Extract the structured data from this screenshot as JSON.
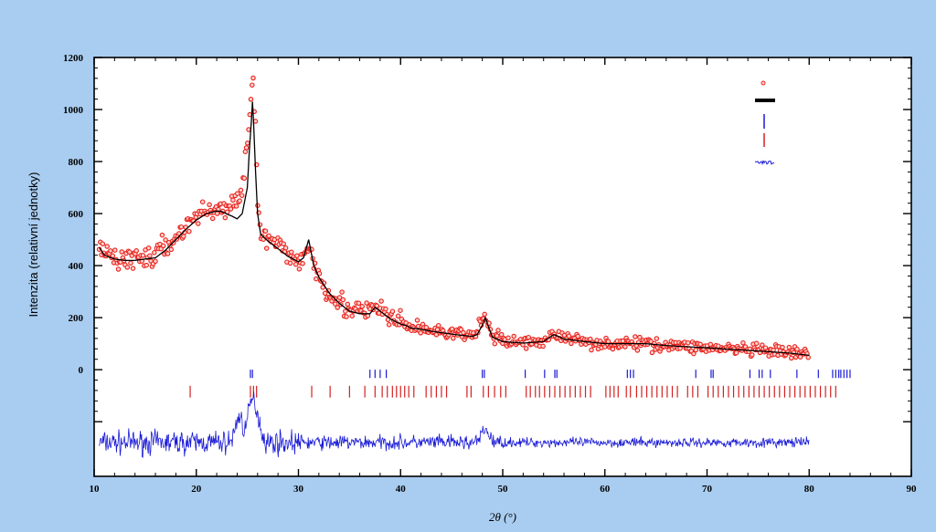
{
  "chart_data": {
    "type": "scatter",
    "title": "",
    "xlabel": "2θ (°)",
    "ylabel": "Intenzita (relativní jednotky)",
    "xlim": [
      10,
      90
    ],
    "ylim": [
      -410,
      1200
    ],
    "x_ticks": [
      "10",
      "20",
      "30",
      "40",
      "50",
      "60",
      "70",
      "80",
      "90"
    ],
    "y_ticks": [
      "0",
      "200",
      "400",
      "600",
      "800",
      "1000",
      "1200"
    ],
    "y_tick_values": [
      0,
      200,
      400,
      600,
      800,
      1000,
      1200
    ],
    "unlabeled_y_tick_values": [
      -200
    ],
    "grid": false,
    "legend_position": "top-right",
    "colors": {
      "background": "#a9cdf0",
      "observed": "#e8221c",
      "calculated": "#000000",
      "phase1": "#1a1ad6",
      "phase2": "#d42020",
      "difference": "#1a1ad6"
    },
    "series": [
      {
        "kind": "observed",
        "marker": "circle",
        "x": [
          10.5,
          11,
          12,
          13,
          14,
          15,
          16,
          17,
          18,
          19,
          20,
          21,
          22,
          22.5,
          23,
          23.5,
          24,
          24.5,
          25,
          25.2,
          25.4,
          25.5,
          25.6,
          25.8,
          26,
          26.3,
          27,
          28,
          29,
          30,
          30.5,
          31,
          31.5,
          32,
          33,
          34,
          35,
          36,
          37,
          37.5,
          38,
          39,
          40,
          40.5,
          41,
          42,
          43,
          44,
          45,
          46,
          47,
          47.5,
          48,
          48.3,
          48.6,
          49,
          50,
          52,
          54,
          55,
          56,
          58,
          60,
          62,
          64,
          66,
          68,
          70,
          72,
          74,
          76,
          78,
          80
        ],
        "y": [
          480,
          450,
          430,
          425,
          430,
          430,
          440,
          470,
          510,
          550,
          590,
          610,
          620,
          615,
          615,
          625,
          650,
          720,
          880,
          980,
          1080,
          1150,
          1080,
          900,
          640,
          520,
          500,
          470,
          440,
          420,
          440,
          470,
          420,
          360,
          300,
          260,
          230,
          220,
          220,
          240,
          230,
          200,
          180,
          170,
          165,
          160,
          150,
          145,
          140,
          135,
          130,
          140,
          200,
          210,
          170,
          130,
          110,
          105,
          110,
          140,
          120,
          110,
          100,
          100,
          100,
          95,
          90,
          85,
          80,
          75,
          70,
          65,
          55
        ]
      },
      {
        "kind": "calculated",
        "marker": "line",
        "x": [
          10.5,
          11,
          12,
          13,
          14,
          15,
          16,
          17,
          18,
          19,
          20,
          21,
          22,
          22.5,
          23,
          23.5,
          24,
          24.5,
          25,
          25.2,
          25.4,
          25.5,
          25.6,
          25.8,
          26,
          26.3,
          27,
          28,
          29,
          30,
          30.5,
          31,
          31.5,
          32,
          33,
          34,
          35,
          36,
          37,
          37.5,
          38,
          39,
          40,
          40.5,
          41,
          42,
          43,
          44,
          45,
          46,
          47,
          47.5,
          48,
          48.3,
          48.6,
          49,
          50,
          52,
          54,
          55,
          56,
          58,
          60,
          62,
          64,
          66,
          68,
          70,
          72,
          74,
          76,
          78,
          80
        ],
        "y": [
          470,
          440,
          425,
          420,
          420,
          425,
          430,
          460,
          500,
          540,
          575,
          600,
          610,
          608,
          598,
          590,
          580,
          600,
          700,
          850,
          960,
          1030,
          960,
          760,
          600,
          520,
          495,
          465,
          435,
          415,
          430,
          500,
          400,
          355,
          295,
          255,
          225,
          215,
          215,
          240,
          225,
          195,
          175,
          170,
          160,
          155,
          148,
          142,
          137,
          132,
          128,
          135,
          170,
          200,
          165,
          125,
          108,
          102,
          108,
          135,
          118,
          108,
          100,
          100,
          100,
          93,
          88,
          84,
          79,
          74,
          69,
          64,
          55
        ]
      }
    ],
    "phase_markers": [
      {
        "row": 1,
        "positions": [
          25.3,
          25.5,
          37.0,
          37.5,
          38.0,
          38.6,
          48.0,
          48.2,
          52.2,
          54.1,
          55.1,
          55.3,
          62.2,
          62.5,
          62.8,
          68.9,
          70.4,
          70.6,
          74.2,
          75.1,
          75.4,
          76.2,
          78.8,
          80.9,
          82.3,
          82.6,
          82.9,
          83.1,
          83.4,
          83.7,
          84.0
        ]
      },
      {
        "row": 2,
        "positions": [
          19.4,
          25.3,
          25.6,
          25.9,
          31.3,
          33.1,
          35.0,
          36.5,
          37.5,
          38.2,
          38.7,
          39.2,
          39.6,
          40.0,
          40.4,
          40.8,
          41.3,
          42.5,
          43.0,
          43.5,
          44.0,
          44.5,
          46.5,
          46.9,
          48.1,
          48.6,
          49.2,
          49.8,
          50.3,
          52.3,
          52.7,
          53.2,
          53.6,
          54.1,
          54.6,
          55.1,
          55.6,
          56.1,
          56.6,
          57.1,
          57.6,
          58.1,
          58.6,
          60.1,
          60.5,
          60.9,
          61.3,
          62.1,
          62.5,
          63.1,
          63.6,
          64.1,
          64.6,
          65.1,
          65.6,
          66.1,
          66.6,
          67.1,
          68.1,
          68.6,
          69.1,
          70.1,
          70.6,
          71.1,
          71.6,
          72.1,
          72.6,
          73.1,
          73.6,
          74.1,
          74.6,
          75.1,
          75.6,
          76.1,
          76.6,
          77.1,
          77.6,
          78.1,
          78.6,
          79.1,
          79.6,
          80.1,
          80.6,
          81.1,
          81.6,
          82.1,
          82.6
        ]
      }
    ],
    "difference_baseline": -280,
    "difference_range": [
      10.5,
      80
    ],
    "difference_features": [
      {
        "x": 24.2,
        "y": -180
      },
      {
        "x": 25.4,
        "y": -140
      },
      {
        "x": 26.0,
        "y": -200
      },
      {
        "x": 48.3,
        "y": -230
      }
    ]
  }
}
